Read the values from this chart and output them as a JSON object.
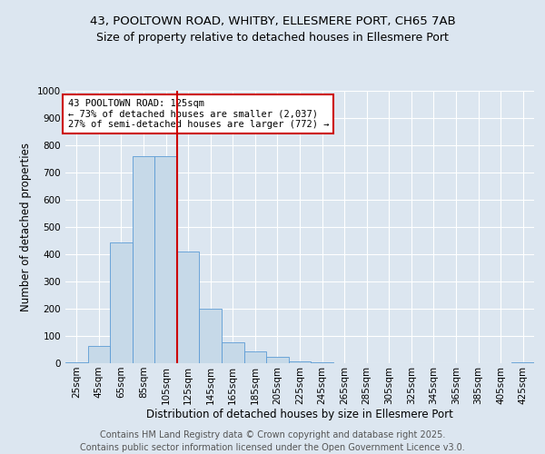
{
  "title_line1": "43, POOLTOWN ROAD, WHITBY, ELLESMERE PORT, CH65 7AB",
  "title_line2": "Size of property relative to detached houses in Ellesmere Port",
  "xlabel": "Distribution of detached houses by size in Ellesmere Port",
  "ylabel": "Number of detached properties",
  "annotation_line1": "43 POOLTOWN ROAD: 125sqm",
  "annotation_line2": "← 73% of detached houses are smaller (2,037)",
  "annotation_line3": "27% of semi-detached houses are larger (772) →",
  "footer_line1": "Contains HM Land Registry data © Crown copyright and database right 2025.",
  "footer_line2": "Contains public sector information licensed under the Open Government Licence v3.0.",
  "bar_categories": [
    "25sqm",
    "45sqm",
    "65sqm",
    "85sqm",
    "105sqm",
    "125sqm",
    "145sqm",
    "165sqm",
    "185sqm",
    "205sqm",
    "225sqm",
    "245sqm",
    "265sqm",
    "285sqm",
    "305sqm",
    "325sqm",
    "345sqm",
    "365sqm",
    "385sqm",
    "405sqm",
    "425sqm"
  ],
  "bar_values": [
    2,
    63,
    445,
    760,
    760,
    410,
    200,
    78,
    45,
    22,
    8,
    3,
    1,
    0,
    0,
    0,
    0,
    0,
    0,
    0,
    2
  ],
  "bar_color": "#c6d9e8",
  "bar_edge_color": "#5b9bd5",
  "vline_x": 4.5,
  "vline_color": "#cc0000",
  "ylim": [
    0,
    1000
  ],
  "yticks": [
    0,
    100,
    200,
    300,
    400,
    500,
    600,
    700,
    800,
    900,
    1000
  ],
  "background_color": "#dce6f0",
  "grid_color": "#ffffff",
  "annotation_box_color": "#ffffff",
  "annotation_box_edge": "#cc0000",
  "title_fontsize": 9.5,
  "subtitle_fontsize": 9,
  "axis_label_fontsize": 8.5,
  "tick_fontsize": 7.5,
  "annotation_fontsize": 7.5,
  "footer_fontsize": 7
}
